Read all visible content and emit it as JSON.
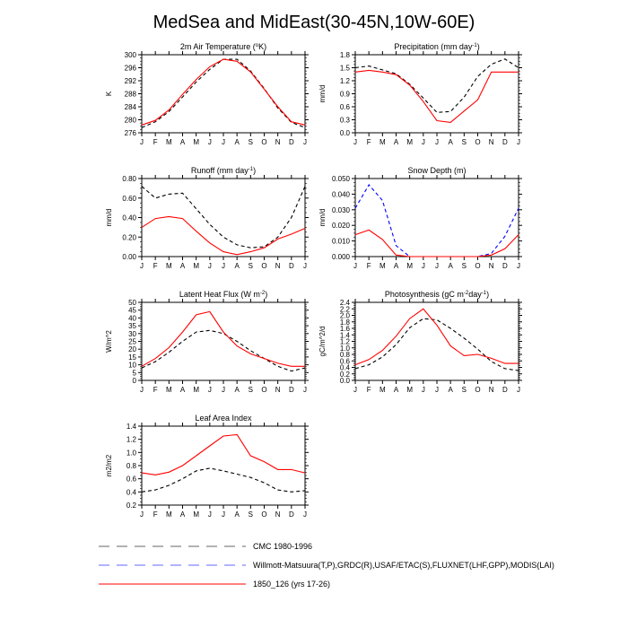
{
  "title": "MedSea and MidEast(30-45N,10W-60E)",
  "months": [
    "J",
    "F",
    "M",
    "A",
    "M",
    "J",
    "J",
    "A",
    "S",
    "O",
    "N",
    "D",
    "J"
  ],
  "legend": [
    {
      "label": "CMC 1980-1996",
      "color": "#000000",
      "dash": "dashed"
    },
    {
      "label": "Willmott-Matsuura(T,P),GRDC(R),USAF/ETAC(S),FLUXNET(LHF,GPP),MODIS(LAI)",
      "color": "#0000ff",
      "dash": "dashed"
    },
    {
      "label": "1850_126 (yrs 17-26)",
      "color": "#ff0000",
      "dash": "solid"
    }
  ],
  "chart_data": [
    {
      "type": "line",
      "title": "2m Air Temperature (",
      "title_sup": "o",
      "title_after": "K)",
      "ylabel": "K",
      "ylim": [
        276,
        300
      ],
      "yticks": [
        276,
        280,
        284,
        288,
        292,
        296,
        300
      ],
      "tick_decimals": 0,
      "series": [
        {
          "style": "black-dashed",
          "values": [
            277.6,
            279.4,
            282.5,
            287.0,
            291.6,
            295.5,
            298.6,
            298.6,
            295.0,
            289.6,
            283.6,
            279.2,
            277.6
          ]
        },
        {
          "style": "red-solid",
          "values": [
            278.4,
            279.8,
            283.0,
            287.8,
            292.4,
            296.3,
            298.6,
            298.0,
            294.7,
            289.4,
            284.0,
            279.4,
            278.4
          ]
        }
      ]
    },
    {
      "type": "line",
      "title": "Precipitation (mm day",
      "title_sup": "-1",
      "title_after": ")",
      "ylabel": "mm/d",
      "ylim": [
        0,
        1.8
      ],
      "yticks": [
        0.0,
        0.3,
        0.6,
        0.9,
        1.2,
        1.5,
        1.8
      ],
      "tick_decimals": 1,
      "series": [
        {
          "style": "black-dashed",
          "values": [
            1.5,
            1.54,
            1.45,
            1.36,
            1.12,
            0.8,
            0.47,
            0.49,
            0.82,
            1.3,
            1.58,
            1.7,
            1.5
          ]
        },
        {
          "style": "red-solid",
          "values": [
            1.4,
            1.44,
            1.4,
            1.34,
            1.1,
            0.72,
            0.28,
            0.24,
            0.5,
            0.76,
            1.4,
            1.4,
            1.4
          ]
        }
      ]
    },
    {
      "type": "line",
      "title": "Runoff (mm day",
      "title_sup": "-1",
      "title_after": ")",
      "ylabel": "mm/d",
      "ylim": [
        0,
        0.8
      ],
      "yticks": [
        0.0,
        0.2,
        0.4,
        0.6,
        0.8
      ],
      "tick_decimals": 2,
      "series": [
        {
          "style": "black-dashed",
          "values": [
            0.72,
            0.6,
            0.64,
            0.65,
            0.49,
            0.33,
            0.2,
            0.12,
            0.09,
            0.1,
            0.2,
            0.4,
            0.72
          ]
        },
        {
          "style": "red-solid",
          "values": [
            0.3,
            0.39,
            0.41,
            0.39,
            0.26,
            0.14,
            0.05,
            0.02,
            0.05,
            0.09,
            0.18,
            0.23,
            0.29
          ]
        }
      ]
    },
    {
      "type": "line",
      "title": "Snow Depth (m)",
      "title_sup": "",
      "title_after": "",
      "ylabel": "mm/d",
      "ylim": [
        0,
        0.05
      ],
      "yticks": [
        0.0,
        0.01,
        0.02,
        0.03,
        0.04,
        0.05
      ],
      "tick_decimals": 3,
      "series": [
        {
          "style": "blue-dashed",
          "values": [
            0.031,
            0.046,
            0.036,
            0.007,
            0.0,
            0.0,
            0.0,
            0.0,
            0.0,
            0.0,
            0.002,
            0.013,
            0.031
          ]
        },
        {
          "style": "red-solid",
          "values": [
            0.014,
            0.017,
            0.011,
            0.001,
            0.0,
            0.0,
            0.0,
            0.0,
            0.0,
            0.0,
            0.001,
            0.005,
            0.014
          ]
        }
      ]
    },
    {
      "type": "line",
      "title": "Latent Heat Flux (W m",
      "title_sup": "-2",
      "title_after": ")",
      "ylabel": "W/m^2",
      "ylim": [
        0,
        50
      ],
      "yticks": [
        0,
        5,
        10,
        15,
        20,
        25,
        30,
        35,
        40,
        45,
        50
      ],
      "tick_decimals": 0,
      "series": [
        {
          "style": "black-dashed",
          "values": [
            8,
            12,
            18,
            25,
            31,
            32,
            30,
            25,
            19,
            14,
            9,
            6,
            8
          ]
        },
        {
          "style": "red-solid",
          "values": [
            9,
            14,
            21,
            31,
            42,
            44,
            31,
            22,
            17,
            14,
            11,
            9,
            9
          ]
        }
      ]
    },
    {
      "type": "line",
      "title": "Photosynthesis (gC m",
      "title_sup": "-2",
      "title_after": "day",
      "title_sup2": "-1",
      "title_tail": ")",
      "ylabel": "gC/m^2/d",
      "ylim": [
        0,
        2.4
      ],
      "yticks": [
        0.0,
        0.2,
        0.4,
        0.6,
        0.8,
        1.0,
        1.2,
        1.4,
        1.6,
        1.8,
        2.0,
        2.2,
        2.4
      ],
      "tick_decimals": 1,
      "series": [
        {
          "style": "black-dashed",
          "values": [
            0.36,
            0.48,
            0.72,
            1.1,
            1.62,
            1.9,
            1.86,
            1.6,
            1.3,
            0.96,
            0.58,
            0.36,
            0.3
          ]
        },
        {
          "style": "red-solid",
          "values": [
            0.48,
            0.64,
            0.92,
            1.36,
            1.9,
            2.2,
            1.7,
            1.06,
            0.76,
            0.8,
            0.68,
            0.52,
            0.52
          ]
        }
      ]
    },
    {
      "type": "line",
      "title": "Leaf Area Index",
      "title_sup": "",
      "title_after": "",
      "ylabel": "m2/m2",
      "ylim": [
        0.2,
        1.4
      ],
      "yticks": [
        0.2,
        0.4,
        0.6,
        0.8,
        1.0,
        1.2,
        1.4
      ],
      "tick_decimals": 1,
      "series": [
        {
          "style": "black-dashed",
          "values": [
            0.4,
            0.43,
            0.5,
            0.6,
            0.72,
            0.76,
            0.72,
            0.67,
            0.62,
            0.54,
            0.43,
            0.4,
            0.42
          ]
        },
        {
          "style": "red-solid",
          "values": [
            0.69,
            0.66,
            0.7,
            0.8,
            0.95,
            1.1,
            1.25,
            1.27,
            0.95,
            0.86,
            0.74,
            0.74,
            0.69
          ]
        }
      ]
    }
  ]
}
